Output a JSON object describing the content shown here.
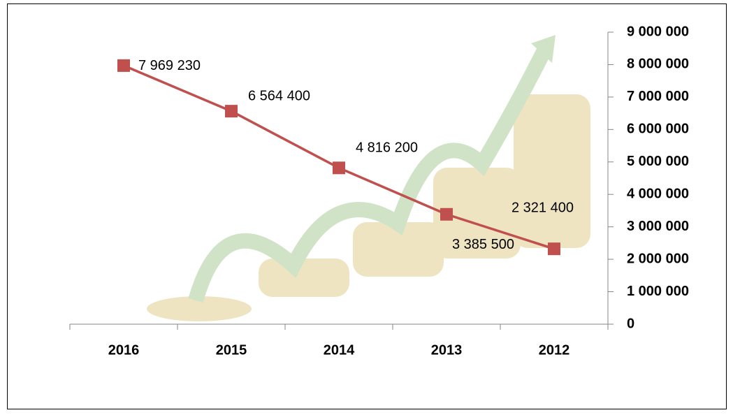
{
  "chart_data": {
    "type": "line",
    "categories": [
      "2016",
      "2015",
      "2014",
      "2013",
      "2012"
    ],
    "series": [
      {
        "color": "#c0504d",
        "values": [
          7969230,
          6564400,
          4816200,
          3385500,
          2321400
        ],
        "value_labels": [
          "7 969 230",
          "6 564 400",
          "4 816 200",
          "3 385 500",
          "2 321 400"
        ]
      }
    ],
    "ylim": [
      0,
      9000000
    ],
    "yticks": [
      0,
      {
        "value": 1000000,
        "label": "1 000 000"
      },
      {
        "value": 2000000,
        "label": "2 000 000"
      },
      {
        "value": 3000000,
        "label": "3 000 000"
      },
      {
        "value": 4000000,
        "label": "4 000 000"
      },
      {
        "value": 5000000,
        "label": "5 000 000"
      },
      {
        "value": 6000000,
        "label": "6 000 000"
      },
      {
        "value": 7000000,
        "label": "7 000 000"
      },
      {
        "value": 8000000,
        "label": "8 000 000"
      },
      {
        "value": 9000000,
        "label": "9 000 000"
      }
    ],
    "y_axis_side": "right",
    "grid": false
  }
}
